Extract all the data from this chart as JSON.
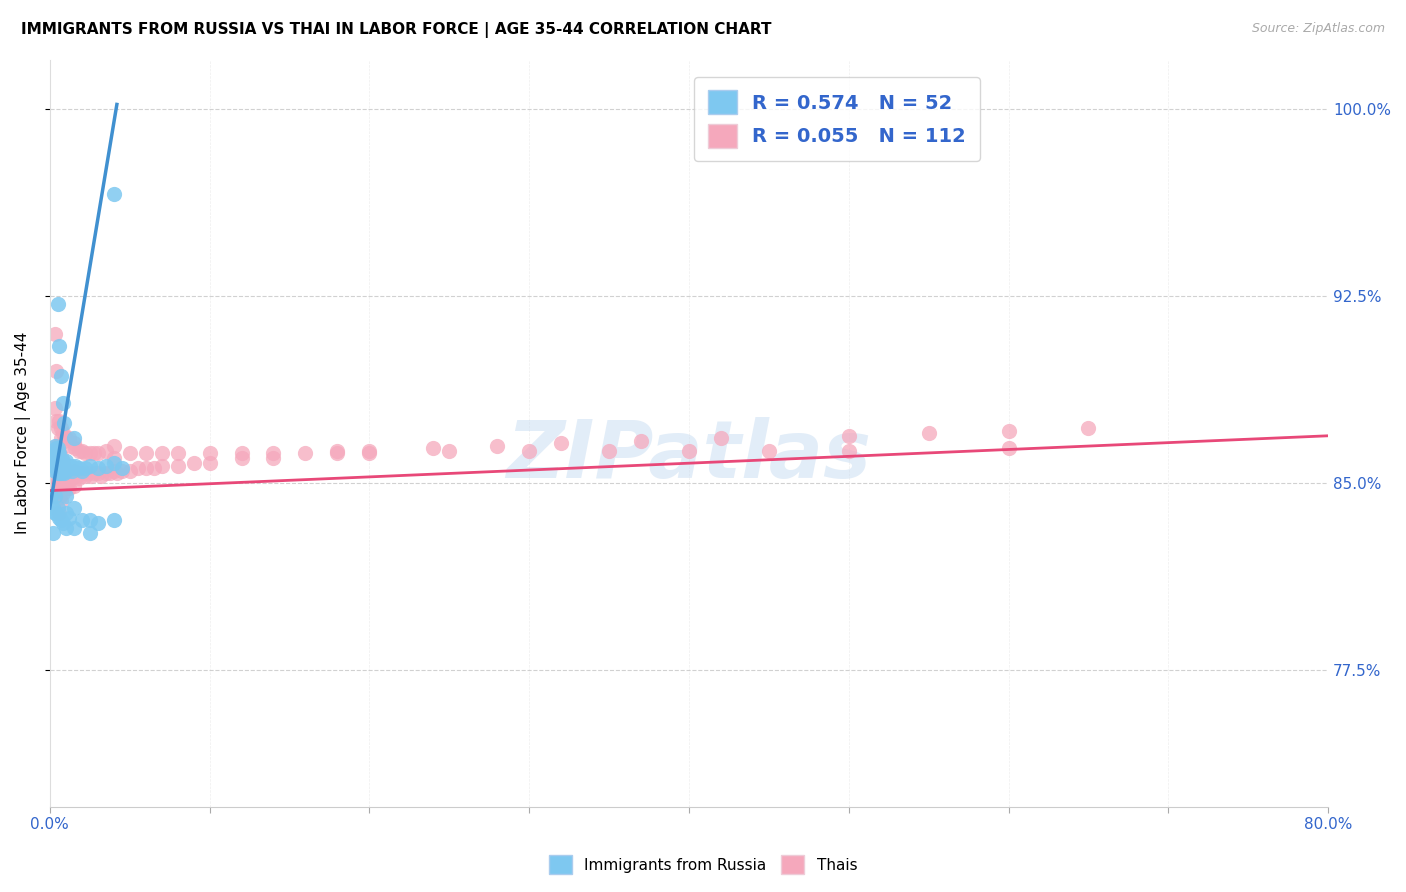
{
  "title": "IMMIGRANTS FROM RUSSIA VS THAI IN LABOR FORCE | AGE 35-44 CORRELATION CHART",
  "source": "Source: ZipAtlas.com",
  "ylabel": "In Labor Force | Age 35-44",
  "xlim": [
    0.0,
    0.8
  ],
  "ylim": [
    0.72,
    1.02
  ],
  "yticks": [
    0.775,
    0.85,
    0.925,
    1.0
  ],
  "ytick_labels": [
    "77.5%",
    "85.0%",
    "92.5%",
    "100.0%"
  ],
  "xticks": [
    0.0,
    0.1,
    0.2,
    0.3,
    0.4,
    0.5,
    0.6,
    0.7,
    0.8
  ],
  "xtick_labels": [
    "0.0%",
    "",
    "",
    "",
    "",
    "",
    "",
    "",
    "80.0%"
  ],
  "russia_R": 0.574,
  "russia_N": 52,
  "thai_R": 0.055,
  "thai_N": 112,
  "russia_color": "#7EC8F0",
  "thai_color": "#F5A8BC",
  "russia_line_color": "#4090D0",
  "thai_line_color": "#E84878",
  "watermark": "ZIPatlas",
  "russia_x": [
    0.002,
    0.003,
    0.003,
    0.003,
    0.004,
    0.004,
    0.004,
    0.004,
    0.004,
    0.005,
    0.005,
    0.005,
    0.005,
    0.005,
    0.005,
    0.006,
    0.006,
    0.006,
    0.006,
    0.006,
    0.007,
    0.007,
    0.007,
    0.008,
    0.008,
    0.008,
    0.009,
    0.009,
    0.01,
    0.01,
    0.01,
    0.011,
    0.012,
    0.013,
    0.014,
    0.015,
    0.016,
    0.018,
    0.02,
    0.022,
    0.025,
    0.03,
    0.035,
    0.04,
    0.045,
    0.005,
    0.006,
    0.007,
    0.008,
    0.009,
    0.015,
    0.04
  ],
  "russia_y": [
    0.86,
    0.855,
    0.86,
    0.865,
    0.858,
    0.862,
    0.856,
    0.86,
    0.864,
    0.854,
    0.856,
    0.858,
    0.86,
    0.862,
    0.864,
    0.854,
    0.856,
    0.858,
    0.86,
    0.862,
    0.854,
    0.856,
    0.858,
    0.855,
    0.857,
    0.859,
    0.854,
    0.857,
    0.855,
    0.857,
    0.859,
    0.856,
    0.856,
    0.857,
    0.855,
    0.856,
    0.857,
    0.856,
    0.855,
    0.856,
    0.857,
    0.856,
    0.857,
    0.858,
    0.856,
    0.922,
    0.905,
    0.893,
    0.882,
    0.874,
    0.868,
    0.966
  ],
  "russia_outliers_x": [
    0.001,
    0.002,
    0.002,
    0.003,
    0.003,
    0.004,
    0.005,
    0.006,
    0.007,
    0.008,
    0.01,
    0.01,
    0.01,
    0.012,
    0.015,
    0.015,
    0.02,
    0.025,
    0.025,
    0.03,
    0.04
  ],
  "russia_outliers_y": [
    0.845,
    0.84,
    0.83,
    0.838,
    0.845,
    0.838,
    0.84,
    0.836,
    0.835,
    0.834,
    0.832,
    0.838,
    0.845,
    0.836,
    0.832,
    0.84,
    0.835,
    0.835,
    0.83,
    0.834,
    0.835
  ],
  "thai_x": [
    0.003,
    0.003,
    0.003,
    0.004,
    0.004,
    0.004,
    0.004,
    0.005,
    0.005,
    0.005,
    0.005,
    0.006,
    0.006,
    0.006,
    0.006,
    0.006,
    0.007,
    0.007,
    0.007,
    0.007,
    0.008,
    0.008,
    0.008,
    0.009,
    0.009,
    0.01,
    0.01,
    0.011,
    0.011,
    0.012,
    0.012,
    0.013,
    0.014,
    0.015,
    0.015,
    0.016,
    0.017,
    0.018,
    0.02,
    0.022,
    0.024,
    0.026,
    0.028,
    0.03,
    0.032,
    0.035,
    0.038,
    0.04,
    0.042,
    0.045,
    0.05,
    0.055,
    0.06,
    0.065,
    0.07,
    0.08,
    0.09,
    0.1,
    0.12,
    0.14,
    0.16,
    0.18,
    0.2,
    0.24,
    0.28,
    0.32,
    0.37,
    0.42,
    0.5,
    0.55,
    0.6,
    0.65
  ],
  "thai_y": [
    0.862,
    0.855,
    0.848,
    0.865,
    0.858,
    0.852,
    0.846,
    0.863,
    0.857,
    0.851,
    0.845,
    0.862,
    0.856,
    0.85,
    0.844,
    0.838,
    0.861,
    0.855,
    0.849,
    0.843,
    0.858,
    0.852,
    0.846,
    0.855,
    0.849,
    0.854,
    0.848,
    0.855,
    0.849,
    0.854,
    0.848,
    0.853,
    0.852,
    0.855,
    0.849,
    0.854,
    0.853,
    0.852,
    0.854,
    0.853,
    0.854,
    0.853,
    0.854,
    0.854,
    0.853,
    0.854,
    0.854,
    0.855,
    0.854,
    0.855,
    0.855,
    0.856,
    0.856,
    0.856,
    0.857,
    0.857,
    0.858,
    0.858,
    0.86,
    0.86,
    0.862,
    0.862,
    0.863,
    0.864,
    0.865,
    0.866,
    0.867,
    0.868,
    0.869,
    0.87,
    0.871,
    0.872
  ],
  "thai_outliers_x": [
    0.003,
    0.003,
    0.004,
    0.004,
    0.005,
    0.006,
    0.007,
    0.007,
    0.008,
    0.009,
    0.01,
    0.012,
    0.013,
    0.015,
    0.016,
    0.018,
    0.02,
    0.022,
    0.025,
    0.028,
    0.03,
    0.035,
    0.04,
    0.04,
    0.05,
    0.06,
    0.07,
    0.08,
    0.1,
    0.12,
    0.14,
    0.18,
    0.2,
    0.25,
    0.3,
    0.35,
    0.4,
    0.45,
    0.5,
    0.6
  ],
  "thai_outliers_y": [
    0.91,
    0.88,
    0.895,
    0.875,
    0.872,
    0.875,
    0.872,
    0.868,
    0.87,
    0.867,
    0.868,
    0.868,
    0.865,
    0.866,
    0.864,
    0.863,
    0.863,
    0.862,
    0.862,
    0.862,
    0.862,
    0.863,
    0.86,
    0.865,
    0.862,
    0.862,
    0.862,
    0.862,
    0.862,
    0.862,
    0.862,
    0.863,
    0.862,
    0.863,
    0.863,
    0.863,
    0.863,
    0.863,
    0.863,
    0.864
  ],
  "russia_line_x": [
    0.0,
    0.042
  ],
  "russia_line_y": [
    0.84,
    1.002
  ],
  "thai_line_x": [
    0.0,
    0.8
  ],
  "thai_line_y": [
    0.847,
    0.869
  ],
  "title_fontsize": 11,
  "axis_label_fontsize": 11,
  "tick_fontsize": 11
}
